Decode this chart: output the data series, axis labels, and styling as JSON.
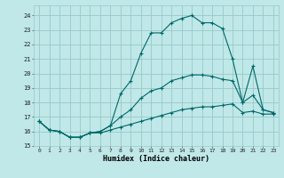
{
  "title": "",
  "xlabel": "Humidex (Indice chaleur)",
  "bg_color": "#c0e8e8",
  "grid_color": "#98c8c8",
  "line_color": "#006868",
  "xlim": [
    -0.5,
    23.5
  ],
  "ylim": [
    15.0,
    24.7
  ],
  "yticks": [
    15,
    16,
    17,
    18,
    19,
    20,
    21,
    22,
    23,
    24
  ],
  "xticks": [
    0,
    1,
    2,
    3,
    4,
    5,
    6,
    7,
    8,
    9,
    10,
    11,
    12,
    13,
    14,
    15,
    16,
    17,
    18,
    19,
    20,
    21,
    22,
    23
  ],
  "line1_x": [
    0,
    1,
    2,
    3,
    4,
    5,
    6,
    7,
    8,
    9,
    10,
    11,
    12,
    13,
    14,
    15,
    16,
    17,
    18,
    19,
    20,
    21,
    22,
    23
  ],
  "line1_y": [
    16.7,
    16.1,
    16.0,
    15.6,
    15.6,
    15.9,
    16.0,
    16.4,
    18.6,
    19.5,
    21.4,
    22.8,
    22.8,
    23.5,
    23.8,
    24.0,
    23.5,
    23.5,
    23.1,
    21.0,
    18.0,
    18.5,
    17.5,
    17.3
  ],
  "line2_x": [
    0,
    1,
    2,
    3,
    4,
    5,
    6,
    7,
    8,
    9,
    10,
    11,
    12,
    13,
    14,
    15,
    16,
    17,
    18,
    19,
    20,
    21,
    22,
    23
  ],
  "line2_y": [
    16.7,
    16.1,
    16.0,
    15.6,
    15.6,
    15.9,
    16.0,
    16.4,
    17.0,
    17.5,
    18.3,
    18.8,
    19.0,
    19.5,
    19.7,
    19.9,
    19.9,
    19.8,
    19.6,
    19.5,
    18.0,
    20.5,
    17.5,
    17.3
  ],
  "line3_x": [
    0,
    1,
    2,
    3,
    4,
    5,
    6,
    7,
    8,
    9,
    10,
    11,
    12,
    13,
    14,
    15,
    16,
    17,
    18,
    19,
    20,
    21,
    22,
    23
  ],
  "line3_y": [
    16.7,
    16.1,
    16.0,
    15.6,
    15.6,
    15.9,
    15.9,
    16.1,
    16.3,
    16.5,
    16.7,
    16.9,
    17.1,
    17.3,
    17.5,
    17.6,
    17.7,
    17.7,
    17.8,
    17.9,
    17.3,
    17.4,
    17.2,
    17.2
  ]
}
